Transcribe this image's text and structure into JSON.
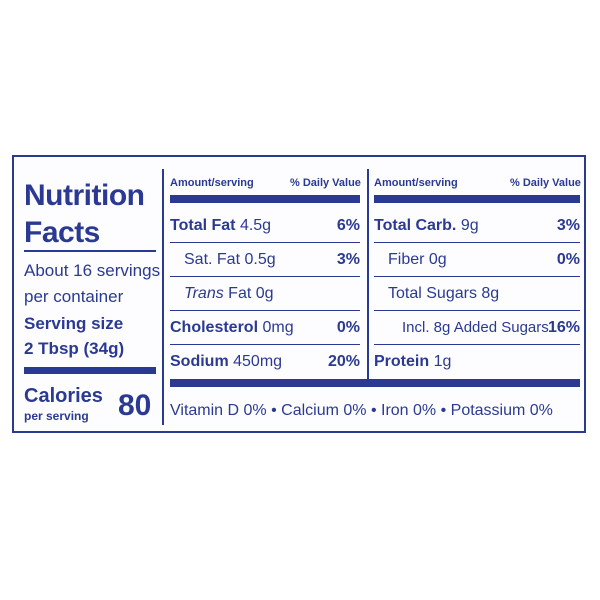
{
  "title": "Nutrition Facts",
  "servings": [
    "About 16 servings",
    "per container"
  ],
  "serving_size_label": "Serving size",
  "serving_size": "2 Tbsp (34g)",
  "calories_label": "Calories",
  "calories_sub": "per serving",
  "calories": "80",
  "columns": [
    {
      "amount_header": "Amount/serving",
      "dv_header": "% Daily Value",
      "rows": [
        {
          "name": "Total Fat",
          "amount": "4.5g",
          "dv": "6%"
        },
        {
          "name": "Sat. Fat",
          "amount": "0.5g",
          "dv": "3%"
        },
        {
          "prefix": "Trans",
          "name": "Fat",
          "amount": "0g"
        },
        {
          "name": "Cholesterol",
          "amount": "0mg",
          "dv": "0%"
        },
        {
          "name": "Sodium",
          "amount": "450mg",
          "dv": "20%"
        }
      ]
    },
    {
      "amount_header": "Amount/serving",
      "dv_header": "% Daily Value",
      "rows": [
        {
          "name": "Total Carb.",
          "amount": "9g",
          "dv": "3%"
        },
        {
          "name": "Fiber",
          "amount": "0g",
          "dv": "0%"
        },
        {
          "name": "Total Sugars",
          "amount": "8g"
        },
        {
          "name": "Incl. 8g Added Sugars",
          "dv": "16%"
        },
        {
          "name": "Protein",
          "amount": "1g"
        }
      ]
    }
  ],
  "vitamins": [
    "Vitamin D 0%",
    "Calcium 0%",
    "Iron 0%",
    "Potassium 0%"
  ]
}
